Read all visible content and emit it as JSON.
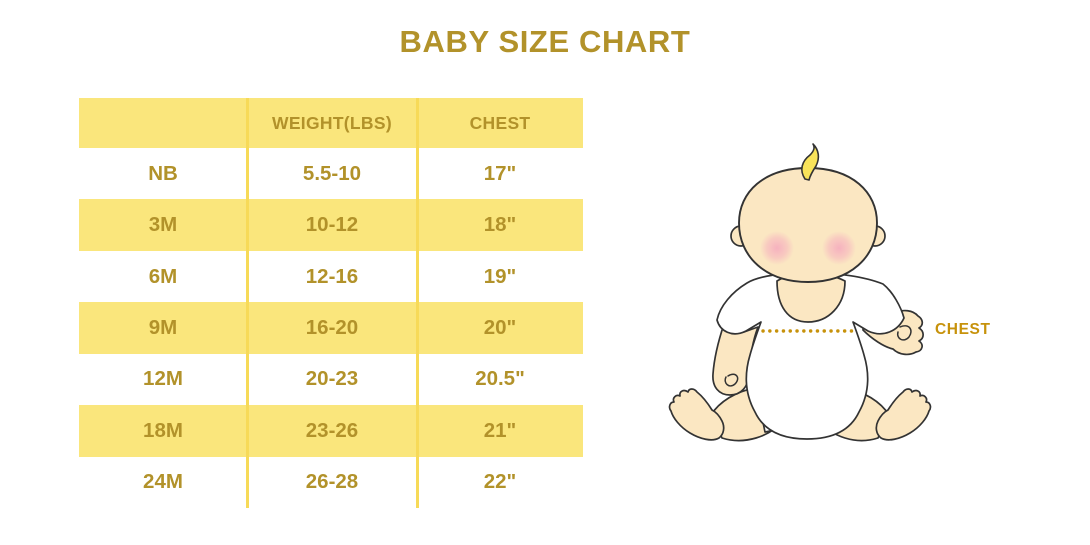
{
  "title": "BABY SIZE CHART",
  "chart_data": {
    "type": "table",
    "title": "BABY SIZE CHART",
    "columns": [
      "",
      "WEIGHT(LBS)",
      "CHEST"
    ],
    "rows": [
      [
        "NB",
        "5.5-10",
        "17\""
      ],
      [
        "3M",
        "10-12",
        "18\""
      ],
      [
        "6M",
        "12-16",
        "19\""
      ],
      [
        "9M",
        "16-20",
        "20\""
      ],
      [
        "12M",
        "20-23",
        "20.5\""
      ],
      [
        "18M",
        "23-26",
        "21\""
      ],
      [
        "24M",
        "26-28",
        "22\""
      ]
    ],
    "row_striping": "white rows alternate with yellow rows, header yellow",
    "annotation": "CHEST"
  },
  "illustration": {
    "name": "sitting-baby-with-chest-measurement-line",
    "chest_label": "CHEST"
  },
  "colors": {
    "background": "#ffffff",
    "gold_text": "#b2922a",
    "row_yellow": "#fae67c",
    "divider_yellow": "#f7da58",
    "chest_gold": "#c7920b",
    "dotted_line_gold": "#c7920b",
    "skin": "#fbe7c2",
    "hair_yellow": "#f8e35a",
    "blush_pink": "#f5a8be",
    "outline": "#333333",
    "onesie_white": "#ffffff"
  }
}
